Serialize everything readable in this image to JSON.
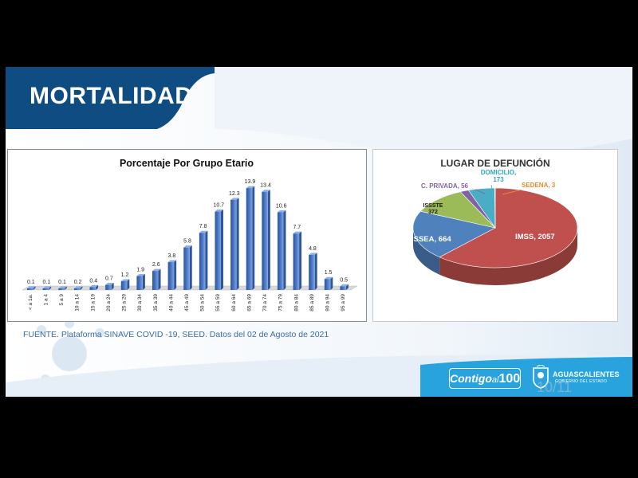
{
  "slide": {
    "title": "MORTALIDAD",
    "source": "FUENTE. Plataforma SINAVE COVID -19, SEED. Datos del 02 de Agosto de 2021",
    "footer_logo_text": "Contigo",
    "footer_logo_mid": "al",
    "footer_logo_num": "100",
    "state_name": "AGUASCALIENTES",
    "state_sub": "GOBIERNO DEL ESTADO",
    "page_number": "10/11",
    "colors": {
      "banner": "#0f4c81",
      "bar": "#4472c4",
      "bottom": "#29a3dd"
    }
  },
  "chart_data": [
    {
      "type": "bar",
      "title": "Porcentaje Por Grupo Etario",
      "categories": [
        "< a 1a.",
        "1 a 4",
        "5 a 9",
        "10 a 14",
        "15 a 19",
        "20 a 24",
        "25 a 29",
        "30 a 34",
        "35 a 39",
        "40 a 44",
        "45 a 49",
        "50 a 54",
        "55 a 59",
        "60 a 64",
        "65 a 69",
        "70 a 74",
        "75 a 79",
        "80 a 84",
        "85 a 89",
        "90 a 94",
        "95 a 99"
      ],
      "values": [
        0.1,
        0.1,
        0.1,
        0.2,
        0.4,
        0.7,
        1.2,
        1.9,
        2.6,
        3.8,
        5.8,
        7.8,
        10.7,
        12.3,
        13.9,
        13.4,
        10.6,
        7.7,
        4.8,
        1.5,
        0.5
      ],
      "value_labels": [
        "0.1",
        "0.1",
        "0.1",
        "0.2",
        "0.4",
        "0.7",
        "1.2",
        "1.9",
        "2.6",
        "3.8",
        "5.8",
        "7.8",
        "10.7",
        "12.3",
        "13.9",
        "13.4",
        "10.6",
        "7.7",
        "4.8",
        "1.5",
        "0.5"
      ],
      "ylim": [
        0,
        15
      ],
      "grid": false,
      "color": "#4472c4"
    },
    {
      "type": "pie",
      "title": "LUGAR DE DEFUNCIÓN",
      "slices": [
        {
          "label": "IMSS, 2057",
          "value": 2057,
          "color": "#c0504d",
          "label_color": "#ffffff"
        },
        {
          "label": "ISSEA, 664",
          "value": 664,
          "color": "#4f81bd",
          "label_color": "#ffffff"
        },
        {
          "label": "ISSSTE\n372",
          "value": 372,
          "color": "#9bbb59",
          "label_color": "#1a1a1a"
        },
        {
          "label": "C. PRIVADA, 56",
          "value": 56,
          "color": "#8064a2",
          "label_color": "#8064a2"
        },
        {
          "label": "DOMICILIO,\n173",
          "value": 173,
          "color": "#4bacc6",
          "label_color": "#31a6c8"
        },
        {
          "label": "SEDENA, 3",
          "value": 3,
          "color": "#f79646",
          "label_color": "#e8892a"
        }
      ]
    }
  ]
}
